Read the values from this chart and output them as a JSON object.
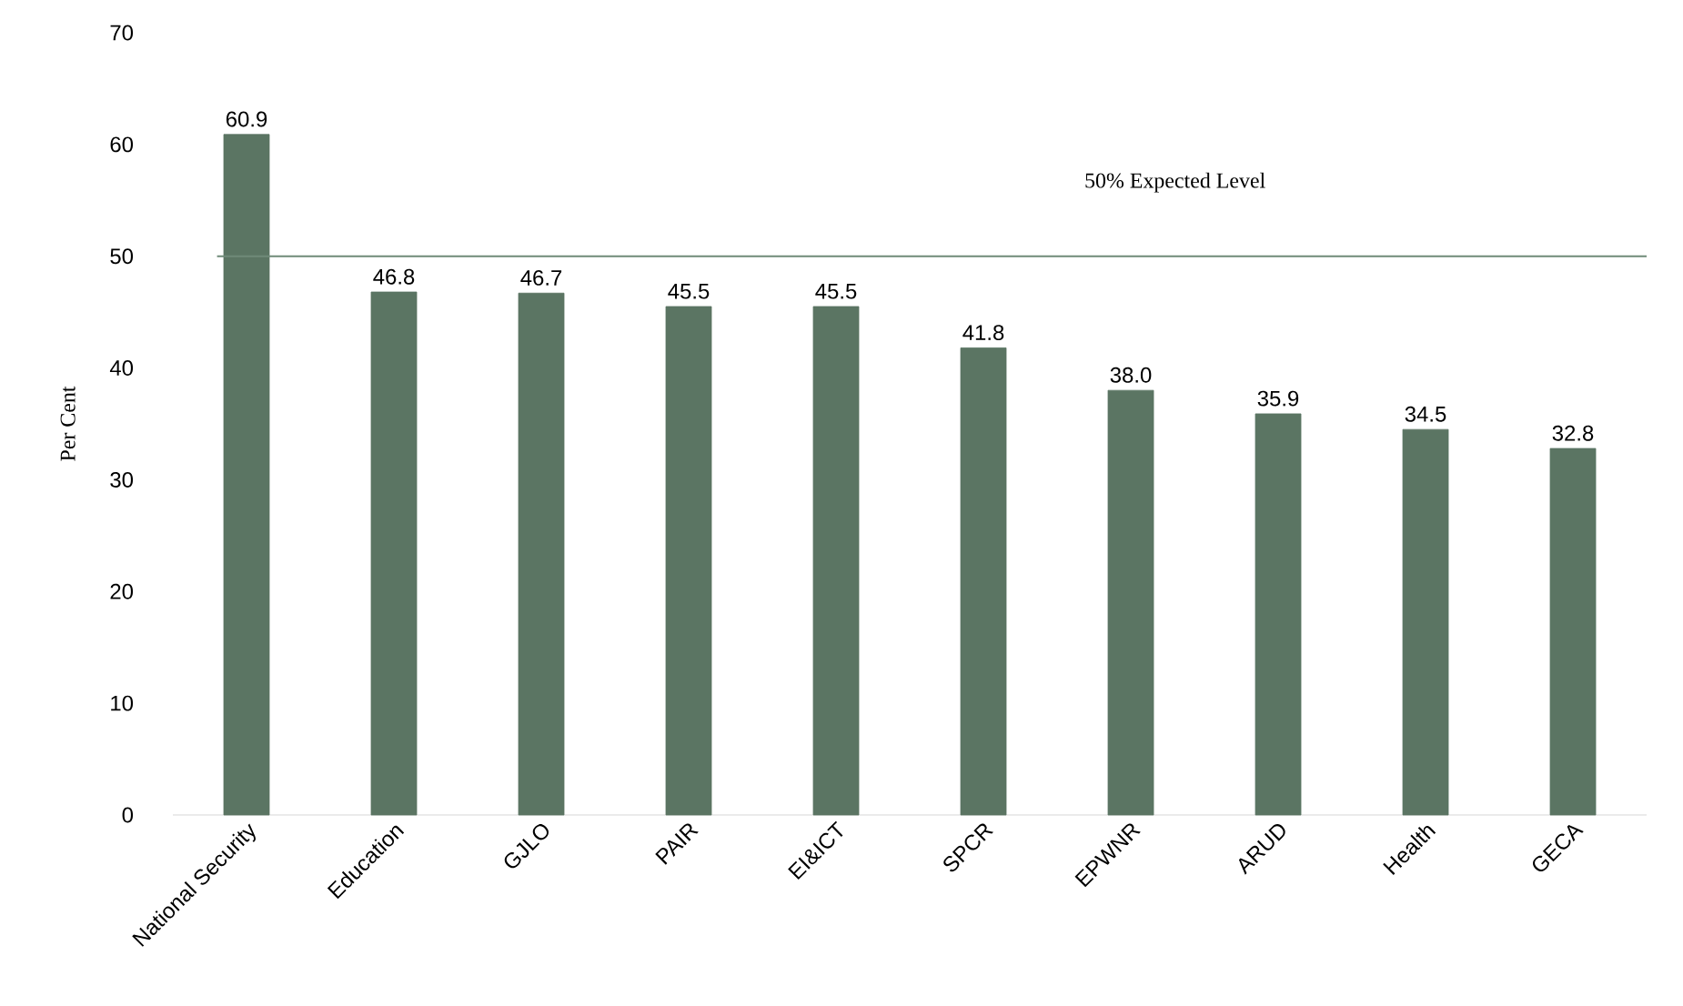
{
  "chart_data": {
    "type": "bar",
    "ylabel": "Per Cent",
    "categories": [
      "National Security",
      "Education",
      "GJLO",
      "PAIR",
      "EI&ICT",
      "SPCR",
      "EPWNR",
      "ARUD",
      "Health",
      "GECA"
    ],
    "values": [
      60.9,
      46.8,
      46.7,
      45.5,
      45.5,
      41.8,
      38.0,
      35.9,
      34.5,
      32.8
    ],
    "value_labels": [
      "60.9",
      "46.8",
      "46.7",
      "45.5",
      "45.5",
      "41.8",
      "38.0",
      "35.9",
      "34.5",
      "32.8"
    ],
    "color": "#5b7563",
    "grid": false,
    "ylim": [
      0,
      70
    ],
    "yticks": [
      0,
      10,
      20,
      30,
      40,
      50,
      60,
      70
    ],
    "ref_lines": [
      {
        "axis": "y",
        "value": 50,
        "label": "50% Expected Level",
        "color": "#6f8a78",
        "line_style": "solid"
      }
    ]
  }
}
